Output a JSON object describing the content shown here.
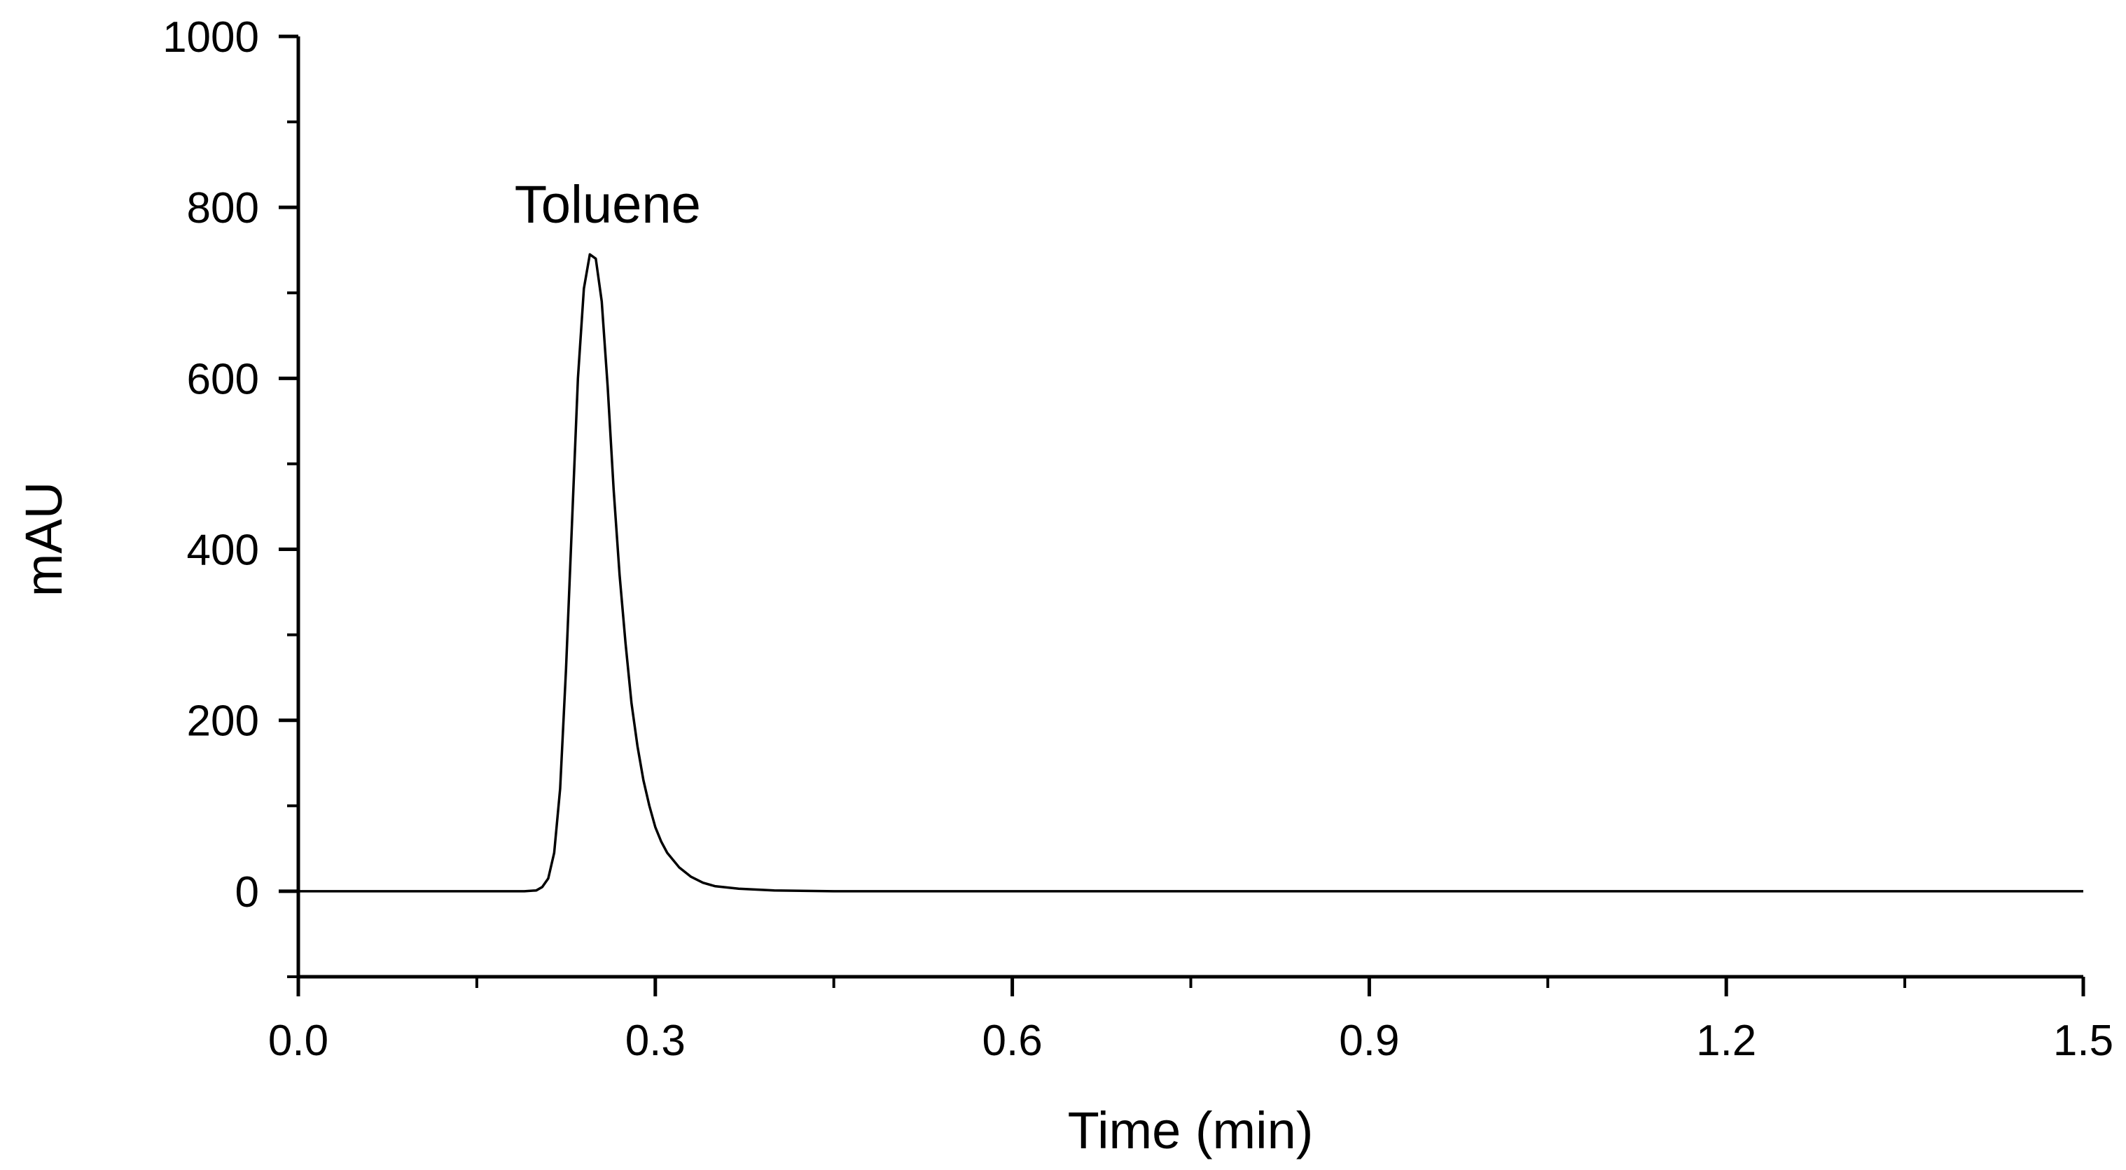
{
  "chart_data": {
    "type": "line",
    "title": "",
    "xlabel": "Time (min)",
    "ylabel": "mAU",
    "xlim": [
      0.0,
      1.5
    ],
    "ylim": [
      -100,
      1000
    ],
    "x_ticks": [
      "0.0",
      "0.3",
      "0.6",
      "0.9",
      "1.2",
      "1.5"
    ],
    "y_ticks": [
      "0",
      "200",
      "400",
      "600",
      "800",
      "1000"
    ],
    "grid": false,
    "legend": "none",
    "line_color": "#000000",
    "annotations": [
      {
        "text": "Toluene",
        "x": 0.26,
        "y": 800
      }
    ],
    "series": [
      {
        "x": [
          0.0,
          0.05,
          0.1,
          0.15,
          0.19,
          0.2,
          0.205,
          0.21,
          0.215,
          0.22,
          0.225,
          0.23,
          0.235,
          0.24,
          0.245,
          0.25,
          0.255,
          0.26,
          0.265,
          0.27,
          0.275,
          0.28,
          0.285,
          0.29,
          0.295,
          0.3,
          0.305,
          0.31,
          0.32,
          0.33,
          0.34,
          0.35,
          0.37,
          0.4,
          0.45,
          0.6,
          0.8,
          1.0,
          1.2,
          1.5
        ],
        "y": [
          0,
          0,
          0,
          0,
          0,
          1,
          5,
          15,
          45,
          120,
          260,
          430,
          600,
          705,
          745,
          740,
          690,
          590,
          470,
          370,
          290,
          220,
          170,
          130,
          100,
          75,
          58,
          45,
          28,
          17,
          10,
          6,
          3,
          1,
          0,
          0,
          0,
          0,
          0,
          0
        ]
      }
    ]
  }
}
